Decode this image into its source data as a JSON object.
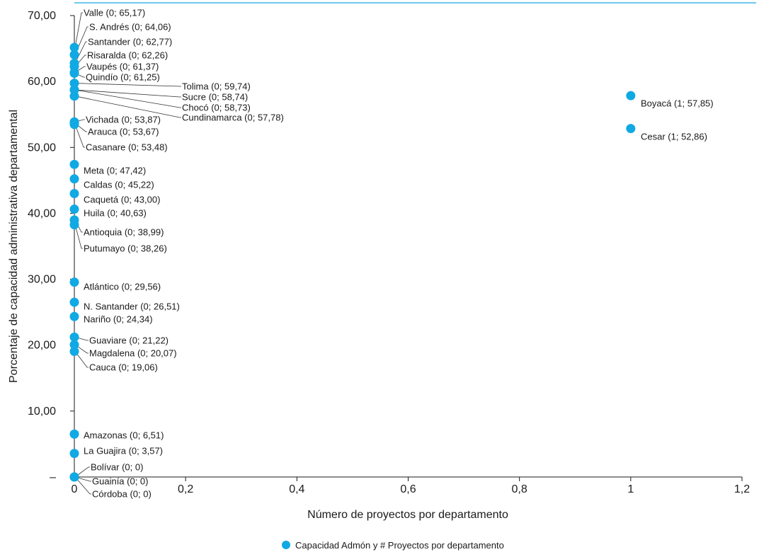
{
  "chart_data": {
    "type": "scatter",
    "xlabel": "Número de proyectos por departamento",
    "ylabel": "Porcentaje de capacidad administrativa departamental",
    "xlim": [
      0,
      1.2
    ],
    "ylim": [
      0,
      70
    ],
    "x_ticks": [
      0,
      0.2,
      0.4,
      0.6,
      0.8,
      1,
      1.2
    ],
    "x_tick_labels": [
      "0",
      "0,2",
      "0,4",
      "0,6",
      "0,8",
      "1",
      "1,2"
    ],
    "y_ticks": [
      0,
      10,
      20,
      30,
      40,
      50,
      60,
      70
    ],
    "y_tick_labels": [
      "–",
      "10,00",
      "20,00",
      "30,00",
      "40,00",
      "50,00",
      "60,00",
      "70,00"
    ],
    "grid": false,
    "legend": {
      "position": "bottom-center",
      "label": "Capacidad Admón y # Proyectos por departamento"
    },
    "colors": {
      "point": "#10a9e3",
      "axis": "#1a1a1a",
      "top_rule": "#3fb9e8",
      "leader": "#333333"
    },
    "series": [
      {
        "name": "Capacidad Admón y # Proyectos por departamento",
        "points": [
          {
            "dept": "Valle",
            "x": 0,
            "y": 65.17,
            "label": "Valle (0; 65,17)"
          },
          {
            "dept": "S. Andrés",
            "x": 0,
            "y": 64.06,
            "label": "S. Andrés (0; 64,06)"
          },
          {
            "dept": "Santander",
            "x": 0,
            "y": 62.77,
            "label": "Santander (0; 62,77)"
          },
          {
            "dept": "Risaralda",
            "x": 0,
            "y": 62.26,
            "label": "Risaralda (0; 62,26)"
          },
          {
            "dept": "Vaupés",
            "x": 0,
            "y": 61.37,
            "label": "Vaupés (0; 61,37)"
          },
          {
            "dept": "Quindío",
            "x": 0,
            "y": 61.25,
            "label": "Quindío (0; 61,25)"
          },
          {
            "dept": "Tolima",
            "x": 0,
            "y": 59.74,
            "label": "Tolima (0; 59,74)"
          },
          {
            "dept": "Sucre",
            "x": 0,
            "y": 58.74,
            "label": "Sucre (0; 58,74)"
          },
          {
            "dept": "Chocó",
            "x": 0,
            "y": 58.73,
            "label": "Chocó (0; 58,73)"
          },
          {
            "dept": "Cundinamarca",
            "x": 0,
            "y": 57.78,
            "label": "Cundinamarca (0; 57,78)"
          },
          {
            "dept": "Vichada",
            "x": 0,
            "y": 53.87,
            "label": "Vichada (0; 53,87)"
          },
          {
            "dept": "Arauca",
            "x": 0,
            "y": 53.67,
            "label": "Arauca (0; 53,67)"
          },
          {
            "dept": "Casanare",
            "x": 0,
            "y": 53.48,
            "label": "Casanare (0; 53,48)"
          },
          {
            "dept": "Meta",
            "x": 0,
            "y": 47.42,
            "label": "Meta (0; 47,42)"
          },
          {
            "dept": "Caldas",
            "x": 0,
            "y": 45.22,
            "label": "Caldas (0; 45,22)"
          },
          {
            "dept": "Caquetá",
            "x": 0,
            "y": 43.0,
            "label": "Caquetá (0; 43,00)"
          },
          {
            "dept": "Huila",
            "x": 0,
            "y": 40.63,
            "label": "Huila (0; 40,63)"
          },
          {
            "dept": "Antioquia",
            "x": 0,
            "y": 38.99,
            "label": "Antioquia (0; 38,99)"
          },
          {
            "dept": "Putumayo",
            "x": 0,
            "y": 38.26,
            "label": "Putumayo (0; 38,26)"
          },
          {
            "dept": "Atlántico",
            "x": 0,
            "y": 29.56,
            "label": "Atlántico (0; 29,56)"
          },
          {
            "dept": "N. Santander",
            "x": 0,
            "y": 26.51,
            "label": "N. Santander (0; 26,51)"
          },
          {
            "dept": "Nariño",
            "x": 0,
            "y": 24.34,
            "label": "Nariño (0; 24,34)"
          },
          {
            "dept": "Guaviare",
            "x": 0,
            "y": 21.22,
            "label": "Guaviare (0; 21,22)"
          },
          {
            "dept": "Magdalena",
            "x": 0,
            "y": 20.07,
            "label": "Magdalena (0; 20,07)"
          },
          {
            "dept": "Cauca",
            "x": 0,
            "y": 19.06,
            "label": "Cauca (0; 19,06)"
          },
          {
            "dept": "Amazonas",
            "x": 0,
            "y": 6.51,
            "label": "Amazonas (0; 6,51)"
          },
          {
            "dept": "La Guajira",
            "x": 0,
            "y": 3.57,
            "label": "La Guajira (0; 3,57)"
          },
          {
            "dept": "Bolívar",
            "x": 0,
            "y": 0,
            "label": "Bolívar (0; 0)"
          },
          {
            "dept": "Guainía",
            "x": 0,
            "y": 0,
            "label": "Guainía (0; 0)"
          },
          {
            "dept": "Córdoba",
            "x": 0,
            "y": 0,
            "label": "Córdoba (0; 0)"
          },
          {
            "dept": "Boyacá",
            "x": 1,
            "y": 57.85,
            "label": "Boyacá (1; 57,85)"
          },
          {
            "dept": "Cesar",
            "x": 1,
            "y": 52.86,
            "label": "Cesar (1; 52,86)"
          }
        ]
      }
    ]
  }
}
